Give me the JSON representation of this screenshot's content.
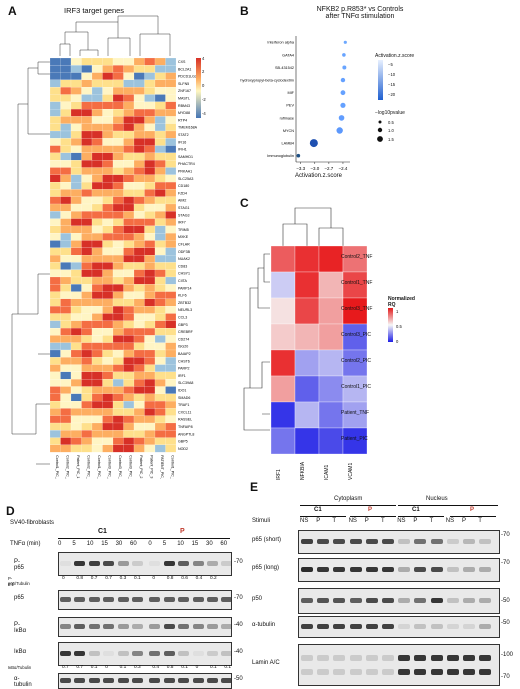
{
  "panels": {
    "A": "A",
    "B": "B",
    "C": "C",
    "D": "D",
    "E": "E"
  },
  "panelA": {
    "title": "IRF3 target genes",
    "genes": [
      "CXS",
      "BCL2A1",
      "PDCD1LG2",
      "SLFN5",
      "ZNF167",
      "MASTL",
      "RBM43",
      "MYD88",
      "RTP4",
      "TMEM168A",
      "STAT2",
      "IFI16",
      "IFIH1",
      "SAMHD1",
      "PHACTR4",
      "PRKAA1",
      "SLC25A3",
      "CD180",
      "FZD4",
      "AIM2",
      "STAG1",
      "STAG3",
      "IRF7",
      "TRIM5",
      "MXKE",
      "CFLAR",
      "ODF3B",
      "NUAK2",
      "CD83",
      "CHSY1",
      "CIITA",
      "PARP14",
      "KLF6",
      "ZBTB32",
      "NEURL3",
      "CCL3",
      "GBP3",
      "CREBRF",
      "CD274",
      "ISG20",
      "BAIAP2",
      "CHST6",
      "PARP2",
      "IRF1",
      "SLC39A8",
      "IDO1",
      "SMAD6",
      "TRAF1",
      "CXCL11",
      "RASSEL",
      "TNFAIP8",
      "ANGPTL8",
      "GBP5",
      "NOD2"
    ],
    "columns": [
      "Control1_PIC_2",
      "Control2_PIC_2",
      "Patient_PIC_1",
      "Control2_PIC_1",
      "Control1_PIC_1",
      "Control3_PIC_2",
      "Control3_PIC_1",
      "Control3_PIC_3",
      "Patient_PIC_2",
      "Patient_PIC_3",
      "PATIENT_PIC_3",
      "Control1_PIC_3"
    ],
    "legend_ticks": [
      "4",
      "2",
      "0",
      "-2",
      "-4"
    ]
  },
  "panelB": {
    "title_line1": "NFKB2 p.R853* vs Controls",
    "title_line2": "after TNFα stimulation",
    "xlabel": "Activation.z.score",
    "legend_color_title": "Activation.z.score",
    "legend_size_title": "−log10pvalue",
    "color_ticks": [
      "−5",
      "−10",
      "−15",
      "−20"
    ],
    "size_ticks": [
      "0.5",
      "1.0",
      "1.5"
    ],
    "chart_data": {
      "type": "scatter",
      "x_ticks": [
        "−3.3",
        "−3.0",
        "−2.7",
        "−2.4"
      ],
      "xlim": [
        -3.4,
        -2.25
      ],
      "points": [
        {
          "label": "Interferon alpha",
          "x": -2.35,
          "size": 0.3
        },
        {
          "label": "GATA4",
          "x": -2.38,
          "size": 0.4
        },
        {
          "label": "SB-431542",
          "x": -2.37,
          "size": 0.5
        },
        {
          "label": "hydroxypropyl-beta-cyclodextrin",
          "x": -2.4,
          "size": 0.6
        },
        {
          "label": "MIF",
          "x": -2.4,
          "size": 0.7
        },
        {
          "label": "PEV",
          "x": -2.4,
          "size": 0.8
        },
        {
          "label": "roflinase",
          "x": -2.43,
          "size": 0.9
        },
        {
          "label": "MYCN",
          "x": -2.47,
          "size": 1.1
        },
        {
          "label": "LAMB4",
          "x": -3.02,
          "size": 1.5
        },
        {
          "label": "Immunoglobulin",
          "x": -3.35,
          "size": 0.4
        }
      ]
    }
  },
  "panelC": {
    "rows": [
      "Control2_TNF",
      "Control1_TNF",
      "Control3_TNF",
      "Control3_PIC",
      "Control2_PIC",
      "Control1_PIC",
      "Patient_TNF",
      "Patient_PIC"
    ],
    "cols": [
      "IRF1",
      "NFKBIA",
      "ICAM1",
      "VCAM1"
    ],
    "legend_title_1": "Normalized",
    "legend_title_2": "RQ",
    "legend_ticks": [
      "1",
      "0.5",
      "0"
    ],
    "chart_data": {
      "type": "heatmap",
      "values": [
        [
          0.85,
          0.95,
          0.98,
          0.8
        ],
        [
          0.4,
          0.95,
          0.65,
          0.9
        ],
        [
          0.55,
          0.9,
          0.7,
          1.0
        ],
        [
          0.6,
          0.65,
          0.7,
          0.15
        ],
        [
          0.95,
          0.3,
          0.35,
          0.2
        ],
        [
          0.7,
          0.15,
          0.25,
          0.35
        ],
        [
          0.05,
          0.35,
          0.2,
          0.3
        ],
        [
          0.2,
          0.05,
          0.1,
          0.05
        ]
      ]
    }
  },
  "panelD": {
    "cell_line": "SV40-fibroblasts",
    "group_c1": "C1",
    "group_p": "P",
    "tnf_label": "TNFα (min)",
    "times": [
      "0",
      "5",
      "10",
      "15",
      "30",
      "60",
      "0",
      "5",
      "10",
      "15",
      "30",
      "60"
    ],
    "ratio1_label": "P-p65/Tubulin",
    "ratio1_values": [
      "0",
      "0.8",
      "0.7",
      "0.7",
      "0.3",
      "0.1",
      "0",
      "0.8",
      "0.6",
      "0.4",
      "0.2",
      ""
    ],
    "ratio1_extra": "0.1",
    "ratio2_label": "IκBα/Tubulin",
    "ratio2_values": [
      "0.7",
      "0.7",
      "0.1",
      "0",
      "0.1",
      "0.3",
      "0.4",
      "0.5",
      "0.1",
      "0",
      "0.1",
      "0.1"
    ],
    "blots": [
      "P-p65",
      "p65",
      "P-IκBα",
      "IκBα",
      "α-tubulin"
    ],
    "mw": [
      "70",
      "70",
      "40",
      "40",
      "50"
    ]
  },
  "panelE": {
    "cytoplasm": "Cytoplasm",
    "nucleus": "Nucleus",
    "group_c1": "C1",
    "group_p": "P",
    "stimuli_label": "Stimuli",
    "stimuli": [
      "NS",
      "P",
      "T",
      "NS",
      "P",
      "T",
      "NS",
      "P",
      "T",
      "NS",
      "P",
      "T"
    ],
    "blots": [
      "p65 (short)",
      "p65 (long)",
      "p50",
      "α-tubulin",
      "Lamin A/C"
    ],
    "mw": [
      "70",
      "70",
      "50",
      "50",
      "100",
      "70"
    ]
  }
}
